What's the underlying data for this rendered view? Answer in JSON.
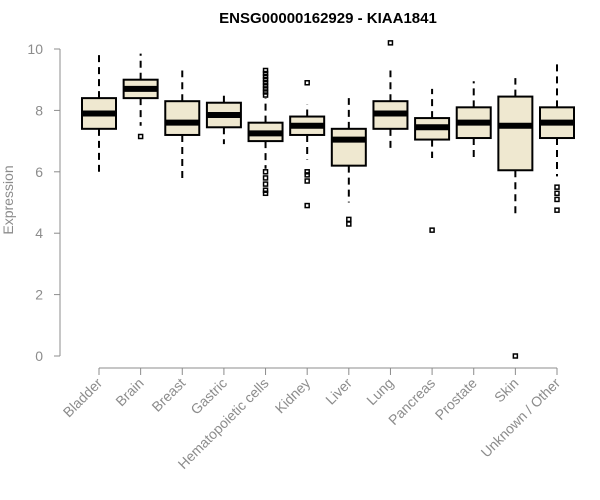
{
  "chart_data": {
    "type": "boxplot",
    "title": "ENSG00000162929 - KIAA1841",
    "ylabel": "Expression",
    "xlabel": "",
    "ylim": [
      0,
      10
    ],
    "yticks": [
      0,
      2,
      4,
      6,
      8,
      10
    ],
    "grid": false,
    "colors": {
      "box_fill": "#efe8d0",
      "box_stroke": "#000000",
      "axis": "#8c8c8c",
      "title": "#000000"
    },
    "categories": [
      "Bladder",
      "Brain",
      "Breast",
      "Gastric",
      "Hematopoietic cells",
      "Kidney",
      "Liver",
      "Lung",
      "Pancreas",
      "Prostate",
      "Skin",
      "Unknown / Other"
    ],
    "boxes": [
      {
        "name": "Bladder",
        "whisker_low": 6.0,
        "q1": 7.4,
        "median": 7.9,
        "q3": 8.4,
        "whisker_high": 9.8,
        "outliers": []
      },
      {
        "name": "Brain",
        "whisker_low": 7.5,
        "q1": 8.4,
        "median": 8.7,
        "q3": 9.0,
        "whisker_high": 9.85,
        "outliers": [
          7.15
        ]
      },
      {
        "name": "Breast",
        "whisker_low": 5.7,
        "q1": 7.2,
        "median": 7.6,
        "q3": 8.3,
        "whisker_high": 9.3,
        "outliers": []
      },
      {
        "name": "Gastric",
        "whisker_low": 6.9,
        "q1": 7.45,
        "median": 7.85,
        "q3": 8.25,
        "whisker_high": 8.6,
        "outliers": []
      },
      {
        "name": "Hematopoietic cells",
        "whisker_low": 6.1,
        "q1": 7.0,
        "median": 7.25,
        "q3": 7.6,
        "whisker_high": 8.4,
        "outliers": [
          9.3,
          9.2,
          9.1,
          9.0,
          8.9,
          8.8,
          8.7,
          8.6,
          8.5,
          6.0,
          5.8,
          5.6,
          5.4,
          5.3
        ]
      },
      {
        "name": "Kidney",
        "whisker_low": 6.4,
        "q1": 7.2,
        "median": 7.5,
        "q3": 7.8,
        "whisker_high": 8.2,
        "outliers": [
          8.9,
          6.0,
          5.9,
          5.7,
          4.9
        ]
      },
      {
        "name": "Liver",
        "whisker_low": 5.0,
        "q1": 6.2,
        "median": 7.05,
        "q3": 7.4,
        "whisker_high": 8.4,
        "outliers": [
          4.45,
          4.3
        ]
      },
      {
        "name": "Lung",
        "whisker_low": 6.75,
        "q1": 7.4,
        "median": 7.9,
        "q3": 8.3,
        "whisker_high": 9.3,
        "outliers": [
          10.2
        ]
      },
      {
        "name": "Pancreas",
        "whisker_low": 6.45,
        "q1": 7.05,
        "median": 7.45,
        "q3": 7.75,
        "whisker_high": 8.7,
        "outliers": [
          4.1
        ]
      },
      {
        "name": "Prostate",
        "whisker_low": 6.35,
        "q1": 7.1,
        "median": 7.6,
        "q3": 8.1,
        "whisker_high": 8.95,
        "outliers": []
      },
      {
        "name": "Skin",
        "whisker_low": 4.6,
        "q1": 6.05,
        "median": 7.5,
        "q3": 8.45,
        "whisker_high": 9.05,
        "outliers": [
          0.0
        ]
      },
      {
        "name": "Unknown / Other",
        "whisker_low": 5.85,
        "q1": 7.1,
        "median": 7.6,
        "q3": 8.1,
        "whisker_high": 9.55,
        "outliers": [
          5.5,
          5.3,
          5.1,
          4.75
        ]
      }
    ]
  }
}
